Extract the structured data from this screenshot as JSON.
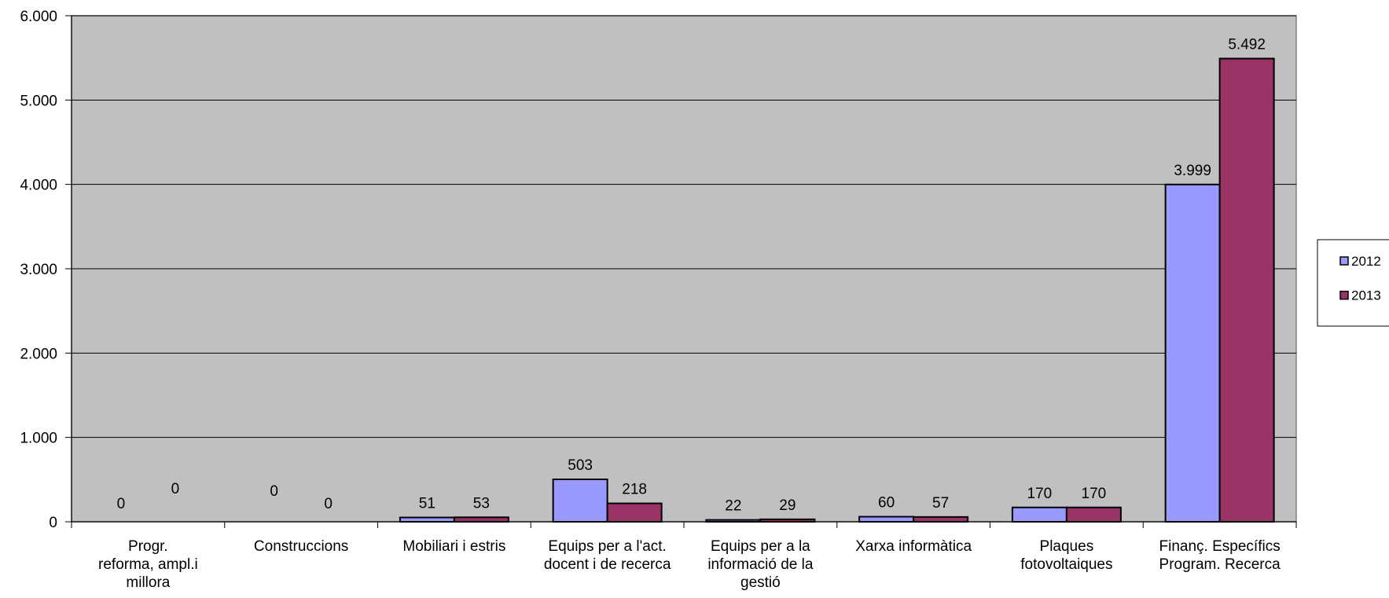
{
  "chart_data": {
    "type": "bar",
    "categories": [
      [
        "Progr.",
        "reforma, ampl.i",
        "millora"
      ],
      [
        "Construccions"
      ],
      [
        "Mobiliari i estris"
      ],
      [
        "Equips per a l'act.",
        "docent i de recerca"
      ],
      [
        "Equips per a la",
        "informació de la",
        "gestió"
      ],
      [
        "Xarxa informàtica"
      ],
      [
        "Plaques",
        "fotovoltaiques"
      ],
      [
        "Finanç. Específics",
        "Program. Recerca"
      ]
    ],
    "series": [
      {
        "name": "2012",
        "color": "#9999FF",
        "values": [
          0,
          0,
          51,
          503,
          22,
          60,
          170,
          3999
        ],
        "labels": [
          "0",
          "0",
          "51",
          "503",
          "22",
          "60",
          "170",
          "3.999"
        ]
      },
      {
        "name": "2013",
        "color": "#993366",
        "values": [
          0,
          0,
          53,
          218,
          29,
          57,
          170,
          5492
        ],
        "labels": [
          "0",
          "0",
          "53",
          "218",
          "29",
          "57",
          "170",
          "5.492"
        ]
      }
    ],
    "ylim": [
      0,
      6000
    ],
    "yticks": [
      0,
      1000,
      2000,
      3000,
      4000,
      5000,
      6000
    ],
    "ytick_labels": [
      "0",
      "1.000",
      "2.000",
      "3.000",
      "4.000",
      "5.000",
      "6.000"
    ],
    "plot_background": "#C0C0C0",
    "grid": true,
    "legend_position": "right"
  }
}
